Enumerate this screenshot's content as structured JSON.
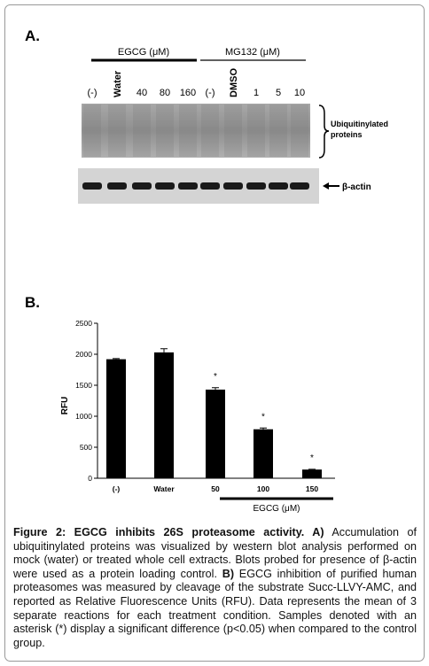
{
  "panel_a": {
    "label": "A.",
    "groups": [
      "EGCG (μM)",
      "MG132 (μM)"
    ],
    "lanes": [
      "(-)",
      "Water",
      "40",
      "80",
      "160",
      "(-)",
      "DMSO",
      "1",
      "5",
      "10"
    ],
    "upper_blot_label": [
      "Ubiquitinylated",
      "proteins"
    ],
    "lower_blot_label": "β-actin"
  },
  "chart_data": {
    "type": "bar",
    "panel_label": "B.",
    "y_label": "RFU",
    "categories": [
      "(-)",
      "Water",
      "50",
      "100",
      "150"
    ],
    "values": [
      1920,
      2030,
      1430,
      790,
      140
    ],
    "error": [
      10,
      60,
      30,
      20,
      5
    ],
    "color": "#000000",
    "ylim": [
      0,
      2500
    ],
    "yticks": [
      0,
      500,
      1000,
      1500,
      2000,
      2500
    ],
    "grid": false,
    "annotations": [
      {
        "text": "*",
        "category": "50"
      },
      {
        "text": "*",
        "category": "100"
      },
      {
        "text": "*",
        "category": "150"
      }
    ],
    "group_label": "EGCG (μM)"
  },
  "caption": [
    {
      "text": "Figure 2: EGCG inhibits 26S proteasome activity. A)",
      "bold": true
    },
    {
      "text": " Accumulation of ubiquitinylated proteins was visualized by western blot analysis performed on mock (water) or treated whole cell extracts. Blots probed for presence of β-actin were used as a protein loading control. ",
      "bold": false
    },
    {
      "text": "B)",
      "bold": true
    },
    {
      "text": " EGCG inhibition of purified human proteasomes was measured by cleavage of the substrate Succ-LLVY-AMC, and reported as Relative Fluorescence Units (RFU). Data represents the mean of 3 separate reactions for each treatment condition. Samples denoted with an asterisk (*) display a significant difference (p<0.05) when compared to the control group.",
      "bold": false
    }
  ]
}
